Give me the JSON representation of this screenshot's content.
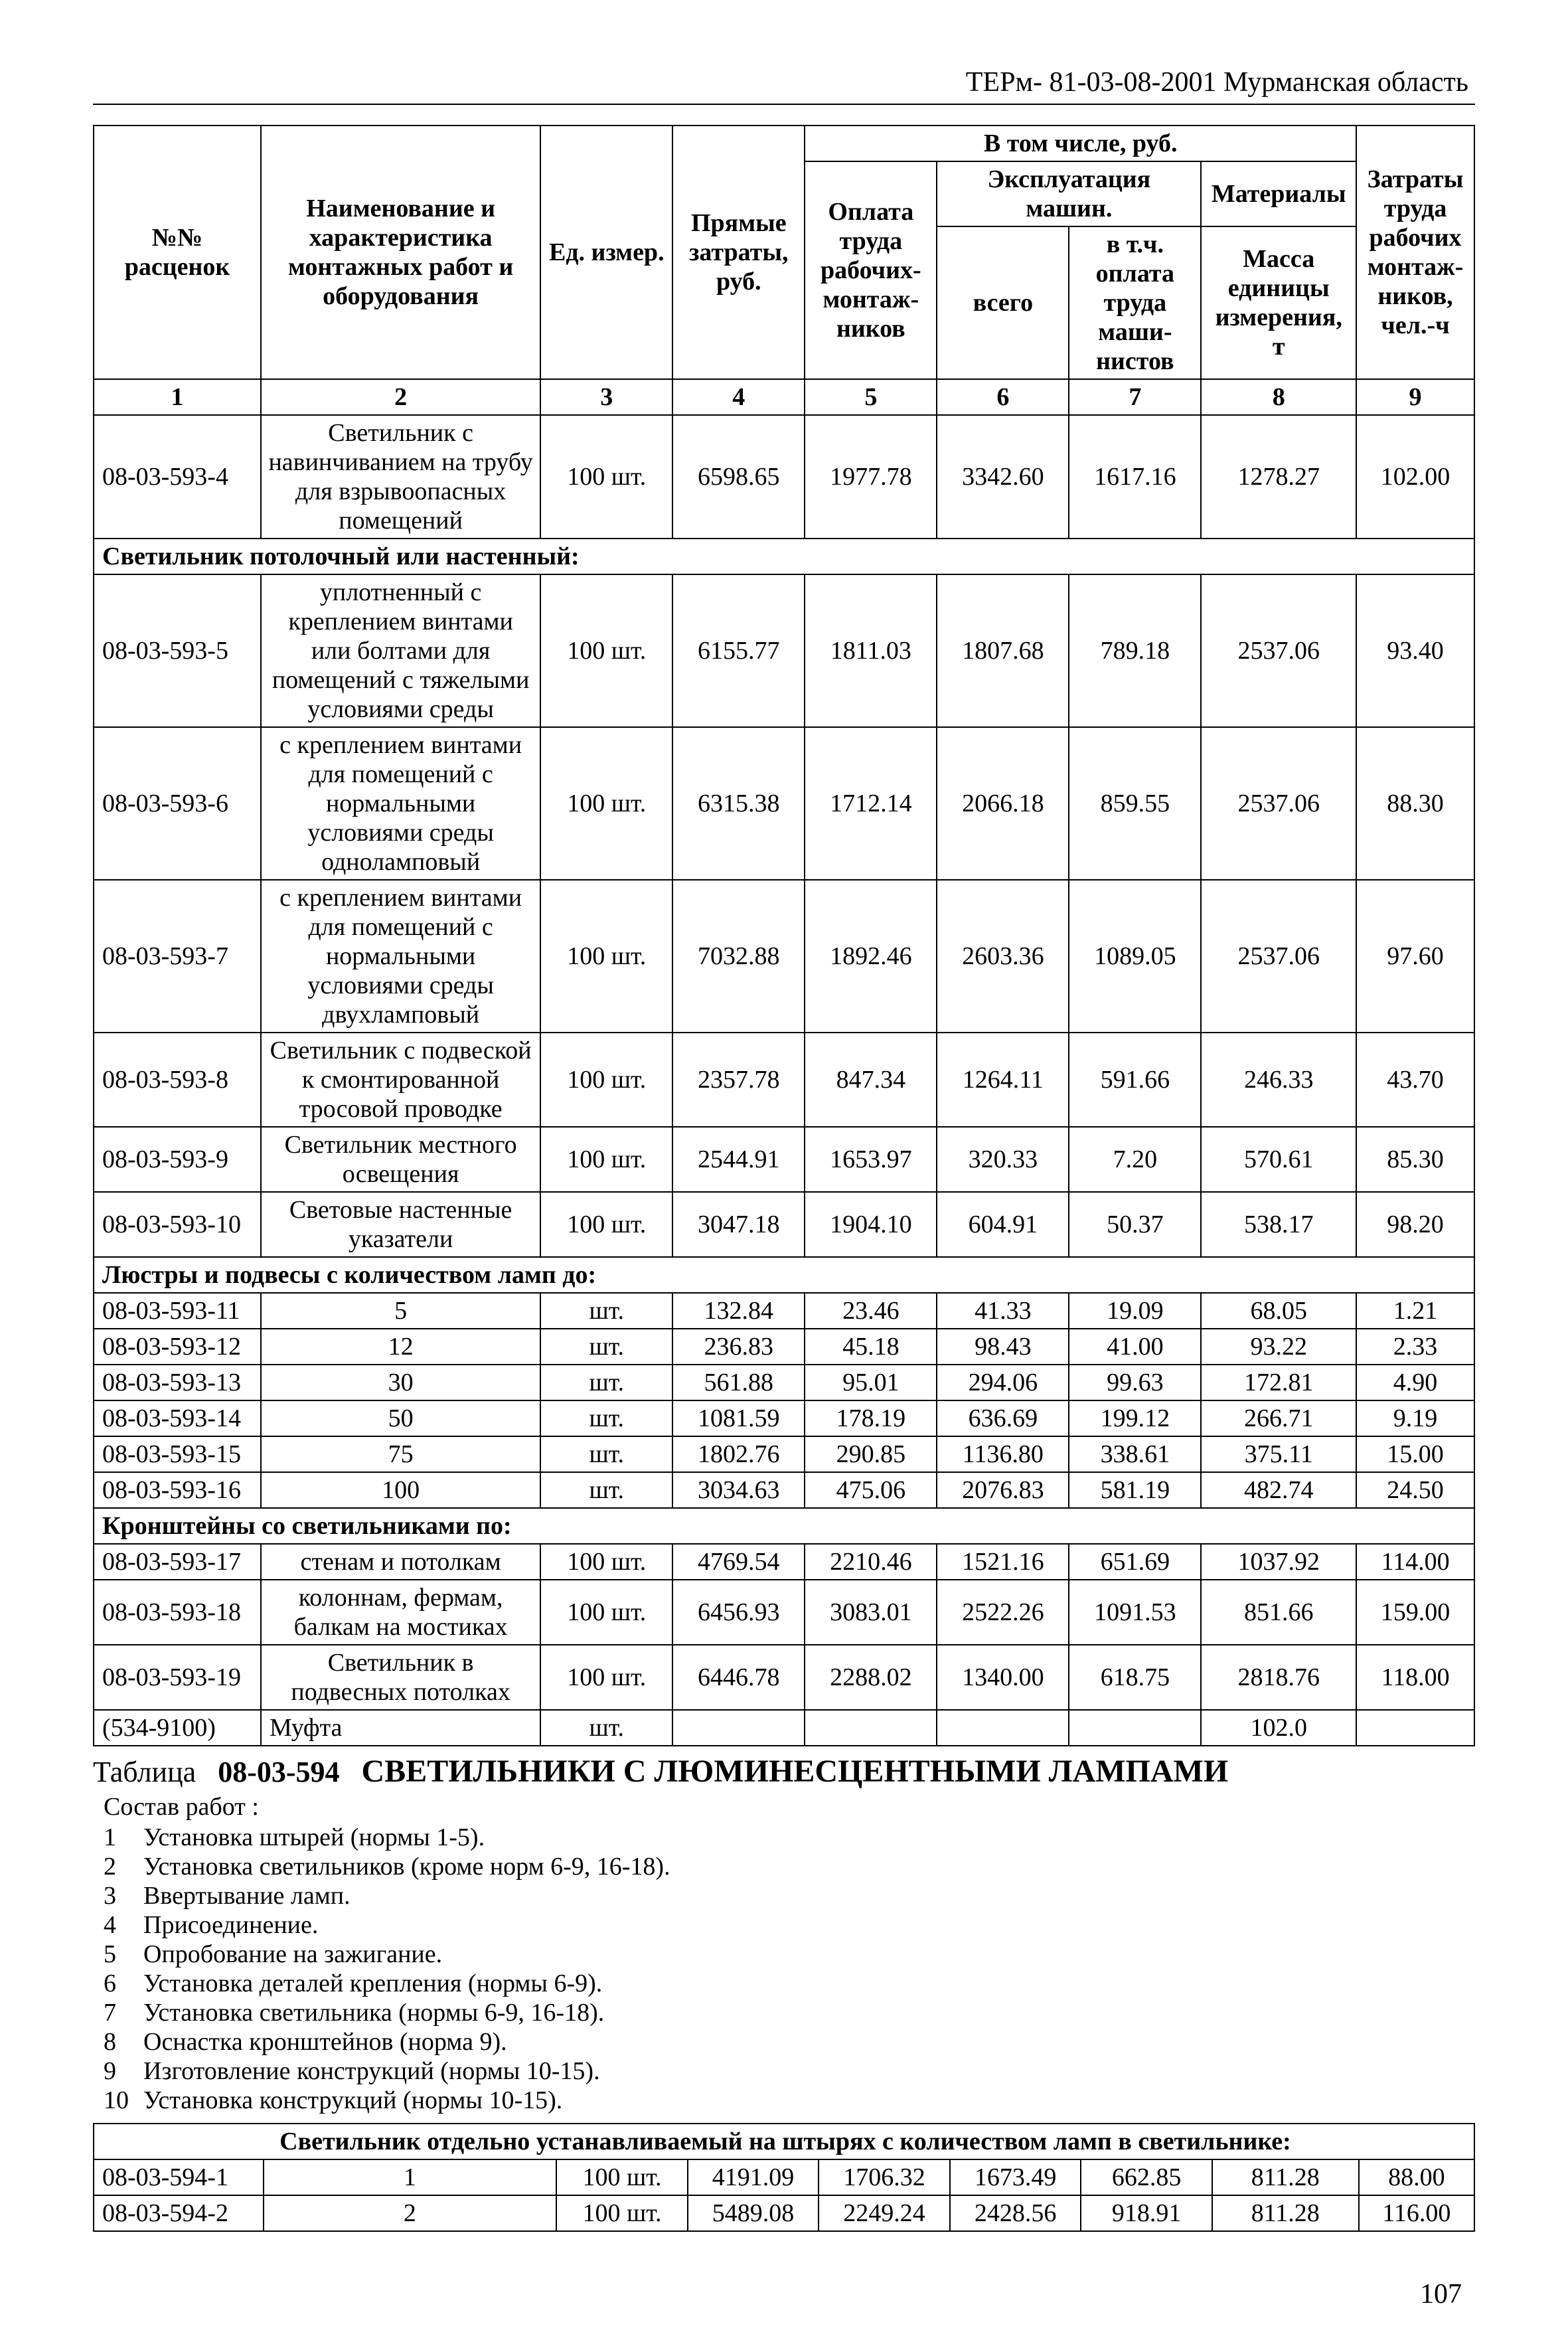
{
  "header": "ТЕРм- 81-03-08-2001 Мурманская область",
  "page_number": "107",
  "columns_header": {
    "c1a": "№№",
    "c1b": "расценок",
    "c2a": "Наименование и",
    "c2b": "характеристика",
    "c2c": "монтажных работ и",
    "c2d": "оборудования",
    "c3": "Ед. измер.",
    "c4": "Прямые затраты, руб.",
    "grp": "В том числе, руб.",
    "c5a": "Оплата",
    "c5b": "труда рабочих-монтаж-ников",
    "c6a": "Эксплуатация машин.",
    "c6b": "всего",
    "c7": "в т.ч. оплата труда маши-нистов",
    "c8a": "Материалы",
    "c8b": "Масса единицы измерения, т",
    "c9a": "Затраты",
    "c9b": "труда рабочих монтаж-ников, чел.-ч"
  },
  "colnums": [
    "1",
    "2",
    "3",
    "4",
    "5",
    "6",
    "7",
    "8",
    "9"
  ],
  "rows": [
    {
      "code": "08-03-593-4",
      "name": "Светильник с навинчиванием на трубу для взрывоопасных помещений",
      "unit": "100   шт.",
      "c4": "6598.65",
      "c5": "1977.78",
      "c6": "3342.60",
      "c7": "1617.16",
      "c8": "1278.27",
      "c9": "102.00"
    },
    {
      "group": "Светильник потолочный или настенный:"
    },
    {
      "code": "08-03-593-5",
      "name": "уплотненный с креплением винтами или болтами для помещений с тяжелыми условиями среды",
      "unit": "100   шт.",
      "c4": "6155.77",
      "c5": "1811.03",
      "c6": "1807.68",
      "c7": "789.18",
      "c8": "2537.06",
      "c9": "93.40"
    },
    {
      "code": "08-03-593-6",
      "name": "с креплением винтами для помещений с нормальными условиями среды одноламповый",
      "unit": "100   шт.",
      "c4": "6315.38",
      "c5": "1712.14",
      "c6": "2066.18",
      "c7": "859.55",
      "c8": "2537.06",
      "c9": "88.30"
    },
    {
      "code": "08-03-593-7",
      "name": "с креплением винтами для помещений с нормальными условиями среды двухламповый",
      "unit": "100   шт.",
      "c4": "7032.88",
      "c5": "1892.46",
      "c6": "2603.36",
      "c7": "1089.05",
      "c8": "2537.06",
      "c9": "97.60"
    },
    {
      "code": "08-03-593-8",
      "name": "Светильник с подвеской к смонтированной тросовой проводке",
      "unit": "100   шт.",
      "c4": "2357.78",
      "c5": "847.34",
      "c6": "1264.11",
      "c7": "591.66",
      "c8": "246.33",
      "c9": "43.70"
    },
    {
      "code": "08-03-593-9",
      "name": "Светильник местного освещения",
      "unit": "100   шт.",
      "c4": "2544.91",
      "c5": "1653.97",
      "c6": "320.33",
      "c7": "7.20",
      "c8": "570.61",
      "c9": "85.30"
    },
    {
      "code": "08-03-593-10",
      "name": "Световые настенные указатели",
      "unit": "100   шт.",
      "c4": "3047.18",
      "c5": "1904.10",
      "c6": "604.91",
      "c7": "50.37",
      "c8": "538.17",
      "c9": "98.20"
    },
    {
      "group": "Люстры и подвесы с количеством ламп до:"
    },
    {
      "code": "08-03-593-11",
      "name": "5",
      "unit": "шт.",
      "c4": "132.84",
      "c5": "23.46",
      "c6": "41.33",
      "c7": "19.09",
      "c8": "68.05",
      "c9": "1.21"
    },
    {
      "code": "08-03-593-12",
      "name": "12",
      "unit": "шт.",
      "c4": "236.83",
      "c5": "45.18",
      "c6": "98.43",
      "c7": "41.00",
      "c8": "93.22",
      "c9": "2.33"
    },
    {
      "code": "08-03-593-13",
      "name": "30",
      "unit": "шт.",
      "c4": "561.88",
      "c5": "95.01",
      "c6": "294.06",
      "c7": "99.63",
      "c8": "172.81",
      "c9": "4.90"
    },
    {
      "code": "08-03-593-14",
      "name": "50",
      "unit": "шт.",
      "c4": "1081.59",
      "c5": "178.19",
      "c6": "636.69",
      "c7": "199.12",
      "c8": "266.71",
      "c9": "9.19"
    },
    {
      "code": "08-03-593-15",
      "name": "75",
      "unit": "шт.",
      "c4": "1802.76",
      "c5": "290.85",
      "c6": "1136.80",
      "c7": "338.61",
      "c8": "375.11",
      "c9": "15.00"
    },
    {
      "code": "08-03-593-16",
      "name": "100",
      "unit": "шт.",
      "c4": "3034.63",
      "c5": "475.06",
      "c6": "2076.83",
      "c7": "581.19",
      "c8": "482.74",
      "c9": "24.50"
    },
    {
      "group": "Кронштейны со светильниками по:"
    },
    {
      "code": "08-03-593-17",
      "name": "стенам и потолкам",
      "unit": "100   шт.",
      "c4": "4769.54",
      "c5": "2210.46",
      "c6": "1521.16",
      "c7": "651.69",
      "c8": "1037.92",
      "c9": "114.00"
    },
    {
      "code": "08-03-593-18",
      "name": "колоннам, фермам, балкам на мостиках",
      "unit": "100   шт.",
      "c4": "6456.93",
      "c5": "3083.01",
      "c6": "2522.26",
      "c7": "1091.53",
      "c8": "851.66",
      "c9": "159.00"
    },
    {
      "code": "08-03-593-19",
      "name": "Светильник в подвесных потолках",
      "unit": "100   шт.",
      "c4": "6446.78",
      "c5": "2288.02",
      "c6": "1340.00",
      "c7": "618.75",
      "c8": "2818.76",
      "c9": "118.00"
    },
    {
      "code": "(534-9100)",
      "name": "Муфта",
      "nameLeft": true,
      "unit": "шт.",
      "c4": "",
      "c5": "",
      "c6": "",
      "c7": "",
      "c8": "102.0",
      "c9": ""
    }
  ],
  "table2": {
    "label": "Таблица",
    "code": "08-03-594",
    "title": "СВЕТИЛЬНИКИ С ЛЮМИНЕСЦЕНТНЫМИ ЛАМПАМИ",
    "works_label": "Состав работ :",
    "works": [
      "Установка штырей (нормы 1-5).",
      "Установка светильников (кроме норм 6-9, 16-18).",
      "Ввертывание ламп.",
      "Присоединение.",
      "Опробование на зажигание.",
      "Установка деталей крепления (нормы 6-9).",
      "Установка светильника (нормы 6-9, 16-18).",
      "Оснастка кронштейнов (норма 9).",
      "Изготовление конструкций (нормы 10-15).",
      "Установка конструкций (нормы 10-15)."
    ],
    "group": "Светильник отдельно устанавливаемый на штырях с количеством ламп в светильнике:",
    "rows": [
      {
        "code": "08-03-594-1",
        "name": "1",
        "unit": "100   шт.",
        "c4": "4191.09",
        "c5": "1706.32",
        "c6": "1673.49",
        "c7": "662.85",
        "c8": "811.28",
        "c9": "88.00"
      },
      {
        "code": "08-03-594-2",
        "name": "2",
        "unit": "100   шт.",
        "c4": "5489.08",
        "c5": "2249.24",
        "c6": "2428.56",
        "c7": "918.91",
        "c8": "811.28",
        "c9": "116.00"
      }
    ]
  }
}
